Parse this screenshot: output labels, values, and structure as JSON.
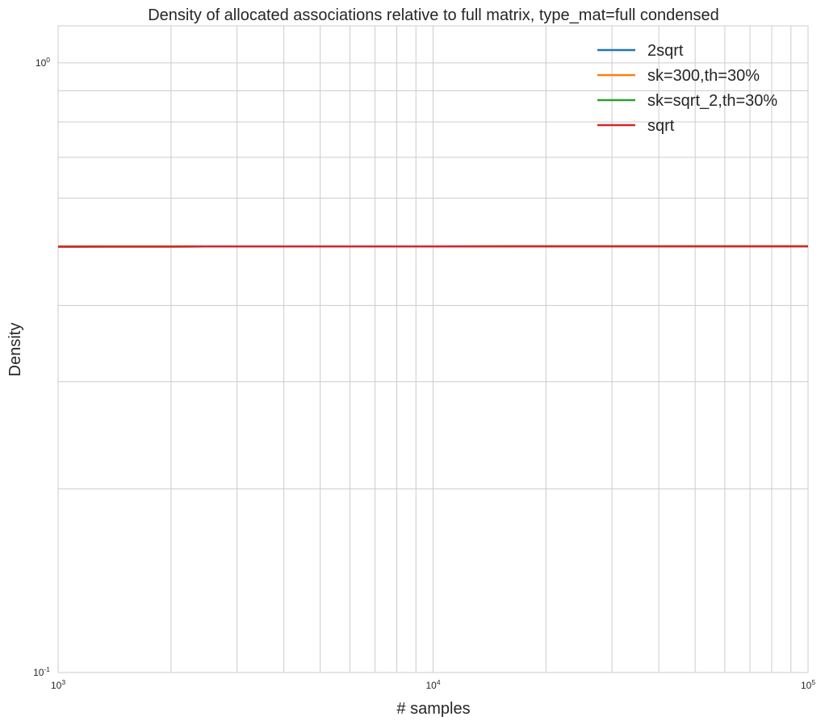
{
  "chart_data": {
    "type": "line",
    "title": "Density of allocated associations relative to full matrix, type_mat=full condensed",
    "xlabel": "# samples",
    "ylabel": "Density",
    "xscale": "log",
    "yscale": "log",
    "xlim": [
      1000,
      100000
    ],
    "ylim": [
      0.1,
      1.15
    ],
    "grid": true,
    "legend_position": "top-right",
    "x_ticks": [
      {
        "base": "10",
        "exp": "3",
        "value": 1000
      },
      {
        "base": "10",
        "exp": "4",
        "value": 10000
      },
      {
        "base": "10",
        "exp": "5",
        "value": 100000
      }
    ],
    "y_ticks": [
      {
        "base": "10",
        "exp": "-1",
        "value": 0.1
      },
      {
        "base": "10",
        "exp": "0",
        "value": 1
      }
    ],
    "x": [
      1000,
      2000,
      5000,
      10000,
      20000,
      50000,
      100000
    ],
    "series": [
      {
        "name": "2sqrt",
        "color": "#1f77b4",
        "values": [
          0.4995,
          0.49975,
          0.4999,
          0.49995,
          0.499975,
          0.49999,
          0.499995
        ]
      },
      {
        "name": "sk=300,th=30%",
        "color": "#ff7f0e",
        "values": [
          0.4995,
          0.49975,
          0.4999,
          0.49995,
          0.499975,
          0.49999,
          0.499995
        ]
      },
      {
        "name": "sk=sqrt_2,th=30%",
        "color": "#2ca02c",
        "values": [
          0.4995,
          0.49975,
          0.4999,
          0.49995,
          0.499975,
          0.49999,
          0.499995
        ]
      },
      {
        "name": "sqrt",
        "color": "#d62728",
        "values": [
          0.4995,
          0.49975,
          0.4999,
          0.49995,
          0.499975,
          0.49999,
          0.499995
        ]
      }
    ]
  }
}
